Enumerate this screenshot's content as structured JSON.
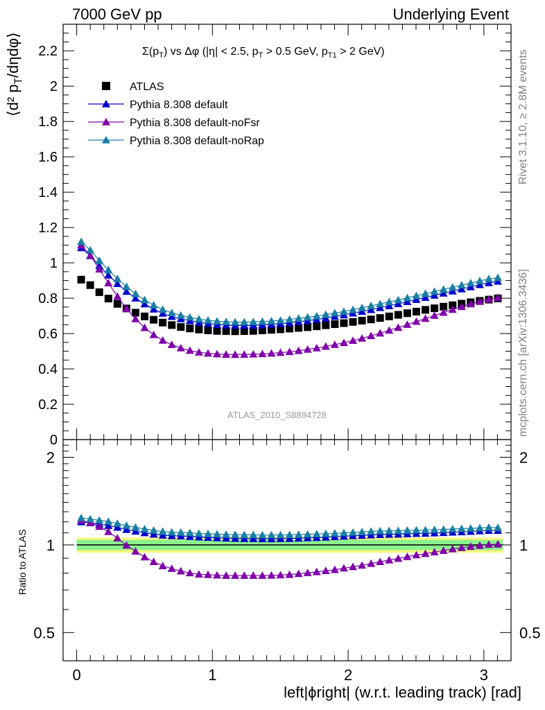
{
  "header": {
    "left": "7000 GeV pp",
    "right": "Underlying Event"
  },
  "side_labels": {
    "rivet": "Rivet 3.1.10, ≥ 2.8M events",
    "mcplots": "mcplots.cern.ch [arXiv:1306.3436]"
  },
  "colors": {
    "atlas": "#000000",
    "default": "#0000cc",
    "noFsr": "#7f00aa",
    "noRap": "#1a7fa6",
    "band_inner": "#8cf28c",
    "band_outer": "#f7f77f"
  },
  "chart_data": [
    {
      "type": "scatter",
      "panel": "main",
      "plot_title": "Σ(p_T) vs Δφ (|η| < 2.5, p_T > 0.5 GeV, p_T1 > 2 GeV)",
      "ylabel": "⟨d² p_T/dηdφ⟩",
      "analysis_label": "ATLAS_2010_S8894728",
      "xlim": [
        -0.1,
        3.2
      ],
      "ylim": [
        0,
        2.35
      ],
      "y_ticks": [
        0,
        0.2,
        0.4,
        0.6,
        0.8,
        1,
        1.2,
        1.4,
        1.6,
        1.8,
        2,
        2.2
      ],
      "y_tick_labels": [
        "0",
        "0.2",
        "0.4",
        "0.6",
        "0.8",
        "1",
        "1.2",
        "1.4",
        "1.6",
        "1.8",
        "2",
        "2.2"
      ],
      "legend_placement": "top-left",
      "x": [
        0.0333,
        0.1001,
        0.1668,
        0.2335,
        0.3003,
        0.367,
        0.4337,
        0.5005,
        0.5672,
        0.6339,
        0.7007,
        0.7674,
        0.8341,
        0.9008,
        0.9676,
        1.0343,
        1.101,
        1.1678,
        1.2345,
        1.3012,
        1.368,
        1.4347,
        1.5014,
        1.5682,
        1.6349,
        1.7016,
        1.7684,
        1.8351,
        1.9018,
        1.9686,
        2.0353,
        2.102,
        2.1688,
        2.2355,
        2.3022,
        2.369,
        2.4357,
        2.5024,
        2.5692,
        2.6359,
        2.7026,
        2.7694,
        2.8361,
        2.9028,
        2.9696,
        3.0363,
        3.103
      ],
      "series": [
        {
          "name": "ATLAS",
          "marker": "square",
          "values": [
            0.905,
            0.874,
            0.834,
            0.798,
            0.768,
            0.742,
            0.718,
            0.697,
            0.678,
            0.662,
            0.648,
            0.637,
            0.629,
            0.623,
            0.618,
            0.615,
            0.614,
            0.613,
            0.614,
            0.615,
            0.618,
            0.621,
            0.624,
            0.628,
            0.632,
            0.636,
            0.641,
            0.647,
            0.653,
            0.659,
            0.666,
            0.673,
            0.68,
            0.688,
            0.697,
            0.706,
            0.715,
            0.724,
            0.734,
            0.743,
            0.752,
            0.76,
            0.769,
            0.777,
            0.785,
            0.792,
            0.799
          ]
        },
        {
          "name": "Pythia 8.308 default",
          "marker": "triangle",
          "values": [
            1.085,
            1.04,
            0.983,
            0.93,
            0.882,
            0.838,
            0.8,
            0.767,
            0.738,
            0.714,
            0.696,
            0.683,
            0.672,
            0.662,
            0.655,
            0.65,
            0.647,
            0.645,
            0.645,
            0.646,
            0.648,
            0.651,
            0.655,
            0.66,
            0.666,
            0.672,
            0.679,
            0.687,
            0.696,
            0.705,
            0.715,
            0.725,
            0.735,
            0.746,
            0.757,
            0.768,
            0.78,
            0.792,
            0.804,
            0.816,
            0.828,
            0.84,
            0.852,
            0.864,
            0.876,
            0.887,
            0.895
          ]
        },
        {
          "name": "Pythia 8.308 default-noFsr",
          "marker": "triangle",
          "values": [
            1.1,
            1.042,
            0.964,
            0.886,
            0.81,
            0.74,
            0.683,
            0.633,
            0.593,
            0.561,
            0.537,
            0.518,
            0.504,
            0.494,
            0.488,
            0.484,
            0.482,
            0.481,
            0.482,
            0.483,
            0.485,
            0.488,
            0.492,
            0.497,
            0.503,
            0.51,
            0.518,
            0.527,
            0.537,
            0.548,
            0.56,
            0.573,
            0.587,
            0.602,
            0.618,
            0.634,
            0.651,
            0.668,
            0.685,
            0.702,
            0.719,
            0.736,
            0.752,
            0.767,
            0.781,
            0.794,
            0.803
          ]
        },
        {
          "name": "Pythia 8.308 default-noRap",
          "marker": "triangle",
          "values": [
            1.12,
            1.072,
            1.013,
            0.96,
            0.91,
            0.865,
            0.825,
            0.79,
            0.761,
            0.736,
            0.717,
            0.703,
            0.692,
            0.682,
            0.675,
            0.67,
            0.667,
            0.665,
            0.665,
            0.666,
            0.668,
            0.671,
            0.675,
            0.68,
            0.686,
            0.692,
            0.699,
            0.707,
            0.716,
            0.725,
            0.735,
            0.746,
            0.757,
            0.768,
            0.779,
            0.79,
            0.802,
            0.814,
            0.826,
            0.838,
            0.85,
            0.862,
            0.874,
            0.886,
            0.898,
            0.909,
            0.916
          ]
        }
      ]
    },
    {
      "type": "scatter",
      "panel": "ratio",
      "ylabel": "Ratio to ATLAS",
      "xlabel": "left|ϕright| (w.r.t. leading track) [rad]",
      "xlim": [
        -0.1,
        3.2
      ],
      "ylim": [
        0.4,
        2.3
      ],
      "log_y": true,
      "x_ticks": [
        0,
        1,
        2,
        3
      ],
      "x_tick_labels": [
        "0",
        "1",
        "2",
        "3"
      ],
      "y_ticks": [
        0.5,
        1,
        2
      ],
      "y_tick_labels": [
        "0.5",
        "1",
        "2"
      ],
      "band_inner": [
        0.96,
        1.04
      ],
      "band_outer": [
        0.94,
        1.06
      ],
      "x": [
        0.0333,
        0.1001,
        0.1668,
        0.2335,
        0.3003,
        0.367,
        0.4337,
        0.5005,
        0.5672,
        0.6339,
        0.7007,
        0.7674,
        0.8341,
        0.9008,
        0.9676,
        1.0343,
        1.101,
        1.1678,
        1.2345,
        1.3012,
        1.368,
        1.4347,
        1.5014,
        1.5682,
        1.6349,
        1.7016,
        1.7684,
        1.8351,
        1.9018,
        1.9686,
        2.0353,
        2.102,
        2.1688,
        2.2355,
        2.3022,
        2.369,
        2.4357,
        2.5024,
        2.5692,
        2.6359,
        2.7026,
        2.7694,
        2.8361,
        2.9028,
        2.9696,
        3.0363,
        3.103
      ],
      "series": [
        {
          "name": "Pythia 8.308 default",
          "marker": "triangle",
          "values": [
            1.199,
            1.19,
            1.178,
            1.165,
            1.148,
            1.129,
            1.114,
            1.1,
            1.088,
            1.079,
            1.074,
            1.072,
            1.068,
            1.063,
            1.06,
            1.057,
            1.054,
            1.052,
            1.05,
            1.05,
            1.049,
            1.048,
            1.05,
            1.051,
            1.054,
            1.057,
            1.059,
            1.062,
            1.066,
            1.07,
            1.074,
            1.077,
            1.081,
            1.084,
            1.086,
            1.088,
            1.091,
            1.094,
            1.095,
            1.098,
            1.101,
            1.105,
            1.108,
            1.112,
            1.116,
            1.12,
            1.12
          ]
        },
        {
          "name": "Pythia 8.308 default-noFsr",
          "marker": "triangle",
          "values": [
            1.215,
            1.192,
            1.156,
            1.11,
            1.055,
            0.997,
            0.951,
            0.908,
            0.875,
            0.847,
            0.829,
            0.813,
            0.801,
            0.793,
            0.79,
            0.787,
            0.785,
            0.785,
            0.785,
            0.785,
            0.785,
            0.786,
            0.788,
            0.791,
            0.796,
            0.802,
            0.808,
            0.815,
            0.822,
            0.832,
            0.841,
            0.851,
            0.863,
            0.875,
            0.887,
            0.898,
            0.911,
            0.923,
            0.933,
            0.945,
            0.956,
            0.968,
            0.978,
            0.987,
            0.995,
            1.003,
            1.005
          ]
        },
        {
          "name": "Pythia 8.308 default-noRap",
          "marker": "triangle",
          "values": [
            1.238,
            1.227,
            1.215,
            1.203,
            1.185,
            1.166,
            1.149,
            1.134,
            1.122,
            1.112,
            1.106,
            1.104,
            1.1,
            1.095,
            1.092,
            1.089,
            1.086,
            1.085,
            1.083,
            1.083,
            1.081,
            1.081,
            1.082,
            1.083,
            1.085,
            1.088,
            1.09,
            1.093,
            1.096,
            1.1,
            1.104,
            1.108,
            1.113,
            1.116,
            1.118,
            1.119,
            1.122,
            1.124,
            1.125,
            1.128,
            1.13,
            1.134,
            1.137,
            1.14,
            1.144,
            1.148,
            1.146
          ]
        }
      ]
    }
  ]
}
